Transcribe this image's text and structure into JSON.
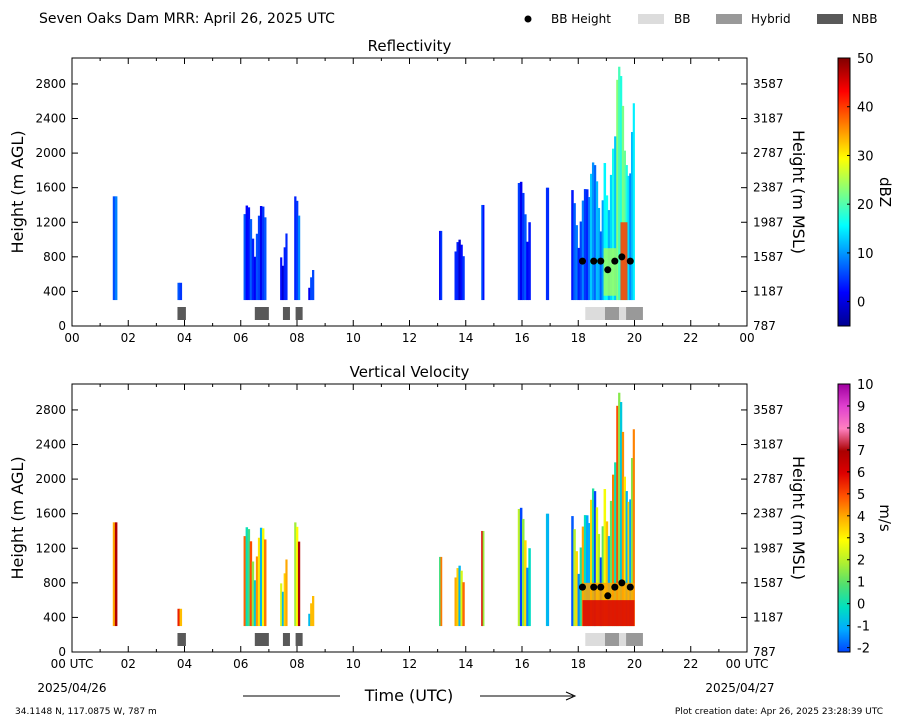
{
  "header": {
    "title": "Seven Oaks Dam MRR:  April 26, 2025 UTC",
    "legend": [
      {
        "label": "BB Height",
        "type": "marker",
        "color": "#000000"
      },
      {
        "label": "BB",
        "type": "patch",
        "color": "#dcdcdc"
      },
      {
        "label": "Hybrid",
        "type": "patch",
        "color": "#999999"
      },
      {
        "label": "NBB",
        "type": "patch",
        "color": "#595959"
      }
    ]
  },
  "footer": {
    "location": "34.1148 N, 117.0875 W, 787 m",
    "creation": "Plot creation date: Apr 26, 2025 23:28:39 UTC",
    "time_label": "Time (UTC)",
    "start_date": "2025/04/26",
    "end_date": "2025/04/27"
  },
  "chart_data": [
    {
      "type": "heatmap",
      "title": "Reflectivity",
      "ylabel": "Height (m AGL)",
      "ylabel_right": "Height (m MSL)",
      "xlim": [
        0,
        24
      ],
      "ylim": [
        0,
        3100
      ],
      "x_ticks": [
        "00",
        "02",
        "04",
        "06",
        "08",
        "10",
        "12",
        "14",
        "16",
        "18",
        "20",
        "22",
        "00"
      ],
      "y_ticks": [
        0,
        400,
        800,
        1200,
        1600,
        2000,
        2400,
        2800
      ],
      "y_ticks_right": [
        "787",
        "1187",
        "1587",
        "1987",
        "2387",
        "2787",
        "3187",
        "3587"
      ],
      "colorbar": {
        "label": "dBZ",
        "range": [
          -5,
          50
        ],
        "ticks": [
          0,
          10,
          20,
          30,
          40,
          50
        ],
        "colors": [
          "#00008f",
          "#0000ff",
          "#0080ff",
          "#00ffff",
          "#80ff80",
          "#ffff00",
          "#ff8000",
          "#ff0000",
          "#800000"
        ]
      },
      "precip_segments": [
        {
          "t0": 1.45,
          "t1": 1.6,
          "top": 1500,
          "value": 6
        },
        {
          "t0": 3.75,
          "t1": 3.9,
          "top": 500,
          "value": 4
        },
        {
          "t0": 6.1,
          "t1": 6.9,
          "top": 1400,
          "value": 4
        },
        {
          "t0": 7.4,
          "t1": 7.65,
          "top": 1150,
          "value": 2
        },
        {
          "t0": 7.9,
          "t1": 8.1,
          "top": 1500,
          "value": 6
        },
        {
          "t0": 8.4,
          "t1": 8.6,
          "top": 680,
          "value": 4
        },
        {
          "t0": 13.05,
          "t1": 13.15,
          "top": 1100,
          "value": 2
        },
        {
          "t0": 13.6,
          "t1": 13.95,
          "top": 1000,
          "value": 2
        },
        {
          "t0": 14.55,
          "t1": 14.65,
          "top": 1400,
          "value": 4
        },
        {
          "t0": 15.85,
          "t1": 16.3,
          "top": 1680,
          "value": 4
        },
        {
          "t0": 16.85,
          "t1": 16.95,
          "top": 1600,
          "value": 6
        },
        {
          "t0": 17.75,
          "t1": 18.35,
          "top": 1600,
          "value": 6
        },
        {
          "t0": 18.35,
          "t1": 18.9,
          "top": 1900,
          "value": 10
        },
        {
          "t0": 18.9,
          "t1": 19.35,
          "top": 2200,
          "value": 14
        },
        {
          "t0": 19.35,
          "t1": 19.75,
          "top": 3000,
          "value": 20
        },
        {
          "t0": 19.75,
          "t1": 20.0,
          "top": 2700,
          "value": 12
        }
      ],
      "bright_band": [
        {
          "t0": 19.5,
          "t1": 19.75,
          "bottom": 300,
          "top": 1200,
          "value": 40
        },
        {
          "t0": 18.9,
          "t1": 19.35,
          "bottom": 350,
          "top": 900,
          "value": 24
        }
      ],
      "bb_height": {
        "times": [
          18.15,
          18.55,
          18.8,
          19.05,
          19.3,
          19.55,
          19.85
        ],
        "heights": [
          750,
          750,
          750,
          650,
          750,
          800,
          750
        ]
      },
      "bb_type": [
        {
          "t0": 3.75,
          "t1": 4.05,
          "type": "NBB"
        },
        {
          "t0": 6.5,
          "t1": 7.0,
          "type": "NBB"
        },
        {
          "t0": 7.5,
          "t1": 7.75,
          "type": "NBB"
        },
        {
          "t0": 7.95,
          "t1": 8.2,
          "type": "NBB"
        },
        {
          "t0": 18.25,
          "t1": 18.95,
          "type": "BB"
        },
        {
          "t0": 18.95,
          "t1": 19.45,
          "type": "Hybrid"
        },
        {
          "t0": 19.45,
          "t1": 19.7,
          "type": "BB"
        },
        {
          "t0": 19.7,
          "t1": 20.3,
          "type": "Hybrid"
        }
      ]
    },
    {
      "type": "heatmap",
      "title": "Vertical Velocity",
      "ylabel": "Height (m AGL)",
      "ylabel_right": "Height (m MSL)",
      "xlim": [
        0,
        24
      ],
      "ylim": [
        0,
        3100
      ],
      "x_ticks": [
        "00 UTC",
        "02",
        "04",
        "06",
        "08",
        "10",
        "12",
        "14",
        "16",
        "18",
        "20",
        "22",
        "00 UTC"
      ],
      "y_ticks": [
        0,
        400,
        800,
        1200,
        1600,
        2000,
        2400,
        2800
      ],
      "y_ticks_right": [
        "787",
        "1187",
        "1587",
        "1987",
        "2387",
        "2787",
        "3187",
        "3587"
      ],
      "colorbar": {
        "label": "m/s",
        "range": [
          -2.2,
          10
        ],
        "ticks": [
          -2,
          -1,
          0,
          1,
          2,
          3,
          4,
          5,
          6,
          7,
          8,
          9,
          10
        ],
        "colors": [
          "#0044ff",
          "#00aaff",
          "#00e0c0",
          "#50e070",
          "#b0f030",
          "#ffff00",
          "#ffb000",
          "#ff5000",
          "#dd0000",
          "#aa0000",
          "#ff80c0",
          "#e040d0",
          "#a000a0"
        ]
      },
      "precip_segments": [
        {
          "t0": 1.45,
          "t1": 1.6,
          "top": 1500,
          "value": 4
        },
        {
          "t0": 3.75,
          "t1": 3.9,
          "top": 500,
          "value": 3
        },
        {
          "t0": 6.1,
          "t1": 6.9,
          "top": 1450,
          "value": 2
        },
        {
          "t0": 7.4,
          "t1": 7.65,
          "top": 1150,
          "value": 2
        },
        {
          "t0": 7.9,
          "t1": 8.1,
          "top": 1500,
          "value": 4
        },
        {
          "t0": 8.4,
          "t1": 8.6,
          "top": 680,
          "value": 2
        },
        {
          "t0": 13.05,
          "t1": 13.15,
          "top": 1100,
          "value": 1.5
        },
        {
          "t0": 13.6,
          "t1": 13.95,
          "top": 1000,
          "value": 2
        },
        {
          "t0": 14.55,
          "t1": 14.65,
          "top": 1400,
          "value": 3
        },
        {
          "t0": 15.85,
          "t1": 16.3,
          "top": 1680,
          "value": 0.8
        },
        {
          "t0": 16.85,
          "t1": 16.95,
          "top": 1600,
          "value": 0.8
        },
        {
          "t0": 17.75,
          "t1": 18.35,
          "top": 1600,
          "value": 1
        },
        {
          "t0": 18.35,
          "t1": 18.9,
          "top": 1900,
          "value": 0.5
        },
        {
          "t0": 18.9,
          "t1": 19.35,
          "top": 2200,
          "value": 1.5
        },
        {
          "t0": 19.35,
          "t1": 19.75,
          "top": 3000,
          "value": 2
        },
        {
          "t0": 19.75,
          "t1": 20.0,
          "top": 2700,
          "value": 1.5
        }
      ],
      "bright_band": [
        {
          "t0": 18.15,
          "t1": 20.0,
          "bottom": 300,
          "top": 800,
          "value": 4
        },
        {
          "t0": 18.15,
          "t1": 20.0,
          "bottom": 300,
          "top": 600,
          "value": 6
        }
      ],
      "bb_height": {
        "times": [
          18.15,
          18.55,
          18.8,
          19.05,
          19.3,
          19.55,
          19.85
        ],
        "heights": [
          750,
          750,
          750,
          650,
          750,
          800,
          750
        ]
      },
      "bb_type": [
        {
          "t0": 3.75,
          "t1": 4.05,
          "type": "NBB"
        },
        {
          "t0": 6.5,
          "t1": 7.0,
          "type": "NBB"
        },
        {
          "t0": 7.5,
          "t1": 7.75,
          "type": "NBB"
        },
        {
          "t0": 7.95,
          "t1": 8.2,
          "type": "NBB"
        },
        {
          "t0": 18.25,
          "t1": 18.95,
          "type": "BB"
        },
        {
          "t0": 18.95,
          "t1": 19.45,
          "type": "Hybrid"
        },
        {
          "t0": 19.45,
          "t1": 19.7,
          "type": "BB"
        },
        {
          "t0": 19.7,
          "t1": 20.3,
          "type": "Hybrid"
        }
      ]
    }
  ]
}
